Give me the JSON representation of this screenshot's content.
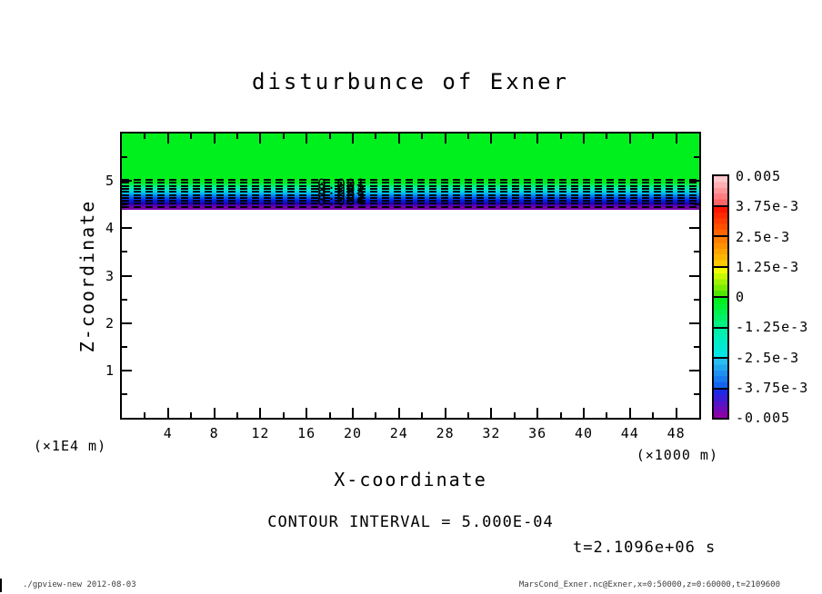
{
  "title": "disturbunce of Exner",
  "axes": {
    "x": {
      "label": "X-coordinate",
      "unit": "(×1000 m)",
      "range": [
        0,
        50
      ],
      "major_ticks": [
        4,
        8,
        12,
        16,
        20,
        24,
        28,
        32,
        36,
        40,
        44,
        48
      ],
      "major_tick_labels": [
        "4",
        "8",
        "12",
        "16",
        "20",
        "24",
        "28",
        "32",
        "36",
        "40",
        "44",
        "48"
      ],
      "minor_ticks": [
        2,
        6,
        10,
        14,
        18,
        22,
        26,
        30,
        34,
        38,
        42,
        46
      ]
    },
    "y": {
      "label": "Z-coordinate",
      "unit": "(×1E4 m)",
      "range": [
        0,
        6
      ],
      "major_ticks": [
        1,
        2,
        3,
        4,
        5
      ],
      "major_tick_labels": [
        "1",
        "2",
        "3",
        "4",
        "5"
      ],
      "minor_ticks": [
        0.5,
        1.5,
        2.5,
        3.5,
        4.5,
        5.5
      ]
    }
  },
  "field": {
    "top_color": "#00f01e",
    "band_gradient": [
      "#00f01e",
      "#00f078",
      "#00e8c8",
      "#00c0f0",
      "#0070f0",
      "#0028e8",
      "#1e00b4",
      "#7800aa"
    ],
    "below_color": "#ffffff"
  },
  "contours": {
    "style": "dashed",
    "line_count": 10,
    "inline_labels": [
      "0.001",
      "0.002",
      "0.003",
      "0.004"
    ],
    "interval_text": "CONTOUR INTERVAL = 5.000E-04"
  },
  "colorbar": {
    "tick_labels": [
      "0.005",
      "3.75e-3",
      "2.5e-3",
      "1.25e-3",
      "0",
      "-1.25e-3",
      "-2.5e-3",
      "-3.75e-3",
      "-0.005"
    ],
    "segments": [
      {
        "from": "#ffc8cc",
        "to": "#ff6468"
      },
      {
        "from": "#ff1400",
        "to": "#ff6400"
      },
      {
        "from": "#ff7d00",
        "to": "#ffc800"
      },
      {
        "from": "#f0ff00",
        "to": "#50e600"
      },
      {
        "from": "#00f01e",
        "to": "#00f082"
      },
      {
        "from": "#00f0aa",
        "to": "#00e6e6"
      },
      {
        "from": "#28bef0",
        "to": "#1464f0"
      },
      {
        "from": "#1e28e6",
        "to": "#8c00aa"
      }
    ]
  },
  "annotations": {
    "time_text": "t=2.1096e+06 s"
  },
  "footer": {
    "left": "./gpview-new  2012-08-03",
    "right": "MarsCond_Exner.nc@Exner,x=0:50000,z=0:60000,t=2109600"
  },
  "chart_data": {
    "type": "heatmap",
    "title": "disturbunce of Exner",
    "xlabel": "X-coordinate (×1000 m)",
    "ylabel": "Z-coordinate (×1E4 m)",
    "xlim": [
      0,
      50
    ],
    "ylim": [
      0,
      6
    ],
    "grid": false,
    "legend_position": "right-colorbar",
    "colorbar_levels": [
      0.005,
      0.00375,
      0.0025,
      0.00125,
      0,
      -0.00125,
      -0.0025,
      -0.00375,
      -0.005
    ],
    "contour_interval": 0.0005,
    "time_seconds": 2109600,
    "description": "Horizontally uniform Exner disturbance field: value ≈ 0 (green) for z above ~4.9×1E4 m, decreasing sharply through dashed negative contours (-5e-4 to -4.5e-3, labeled 0.001–0.004) to -0.005 (purple) near z ≈ 4.4×1E4 m; white (out of range) below.",
    "vertical_profile": [
      {
        "z_x1e4m": 6.0,
        "value": 0.0
      },
      {
        "z_x1e4m": 4.95,
        "value": 0.0
      },
      {
        "z_x1e4m": 4.88,
        "value": -0.0005
      },
      {
        "z_x1e4m": 4.83,
        "value": -0.001
      },
      {
        "z_x1e4m": 4.78,
        "value": -0.0015
      },
      {
        "z_x1e4m": 4.73,
        "value": -0.002
      },
      {
        "z_x1e4m": 4.67,
        "value": -0.0025
      },
      {
        "z_x1e4m": 4.62,
        "value": -0.003
      },
      {
        "z_x1e4m": 4.57,
        "value": -0.0035
      },
      {
        "z_x1e4m": 4.51,
        "value": -0.004
      },
      {
        "z_x1e4m": 4.46,
        "value": -0.0045
      },
      {
        "z_x1e4m": 4.41,
        "value": -0.005
      }
    ]
  }
}
